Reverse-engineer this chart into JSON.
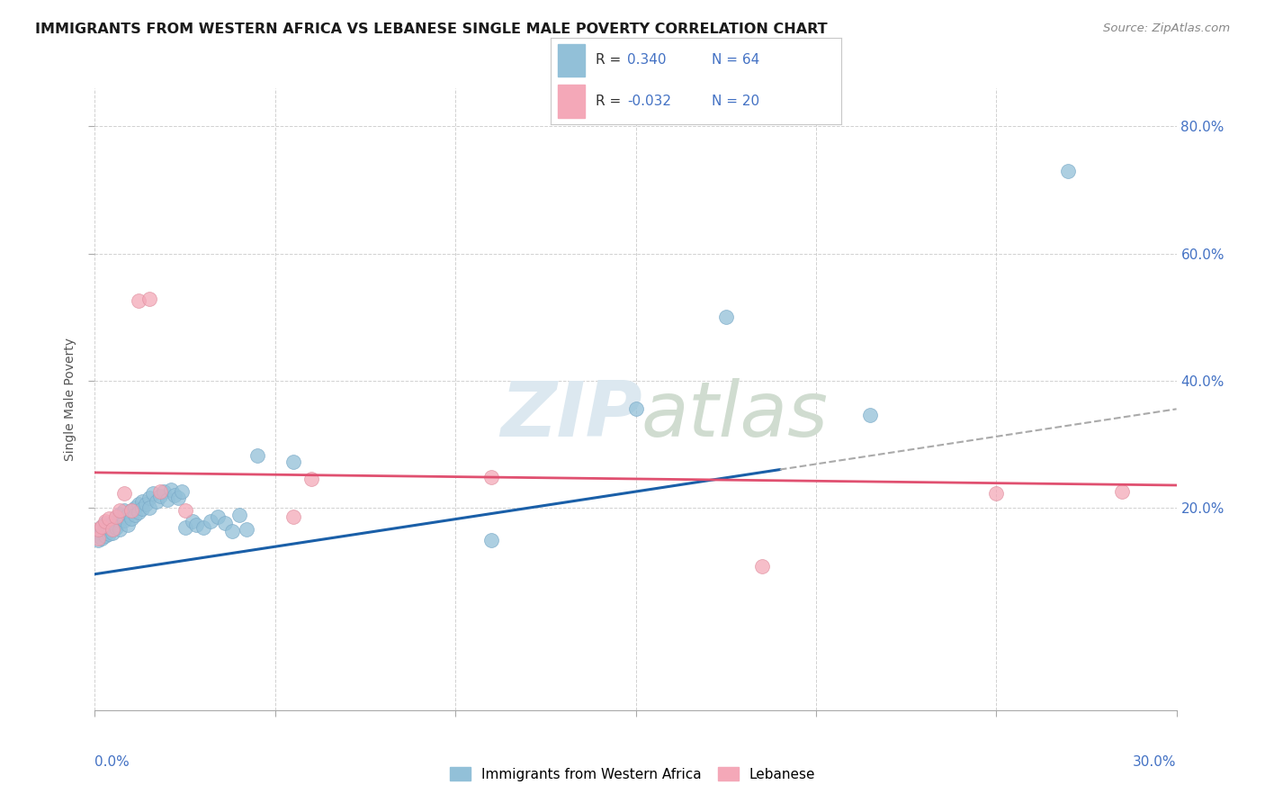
{
  "title": "IMMIGRANTS FROM WESTERN AFRICA VS LEBANESE SINGLE MALE POVERTY CORRELATION CHART",
  "source": "Source: ZipAtlas.com",
  "ylabel": "Single Male Poverty",
  "blue_color": "#92c0d8",
  "pink_color": "#f4a8b8",
  "blue_line_color": "#1a5fa8",
  "pink_line_color": "#e05070",
  "axis_label_color": "#4472c4",
  "title_color": "#1a1a1a",
  "source_color": "#888888",
  "grid_color": "#cccccc",
  "background_color": "#ffffff",
  "legend_text_color": "#4472c4",
  "legend_label_color": "#333333",
  "xlim": [
    0.0,
    0.3
  ],
  "ylim": [
    -0.12,
    0.86
  ],
  "xtick_left": "0.0%",
  "xtick_right": "30.0%",
  "ytick_right_vals": [
    0.2,
    0.4,
    0.6,
    0.8
  ],
  "ytick_right_labels": [
    "20.0%",
    "40.0%",
    "60.0%",
    "80.0%"
  ],
  "legend_label1": "Immigrants from Western Africa",
  "legend_label2": "Lebanese",
  "blue_scatter_x": [
    0.001,
    0.001,
    0.001,
    0.002,
    0.002,
    0.002,
    0.002,
    0.003,
    0.003,
    0.003,
    0.003,
    0.004,
    0.004,
    0.004,
    0.005,
    0.005,
    0.005,
    0.006,
    0.006,
    0.006,
    0.007,
    0.007,
    0.007,
    0.008,
    0.008,
    0.009,
    0.009,
    0.01,
    0.01,
    0.011,
    0.011,
    0.012,
    0.012,
    0.013,
    0.013,
    0.014,
    0.015,
    0.015,
    0.016,
    0.017,
    0.018,
    0.019,
    0.02,
    0.021,
    0.022,
    0.023,
    0.024,
    0.025,
    0.027,
    0.028,
    0.03,
    0.032,
    0.034,
    0.036,
    0.038,
    0.04,
    0.042,
    0.045,
    0.055,
    0.11,
    0.15,
    0.175,
    0.215,
    0.27
  ],
  "blue_scatter_y": [
    0.155,
    0.148,
    0.162,
    0.158,
    0.165,
    0.152,
    0.17,
    0.16,
    0.168,
    0.155,
    0.175,
    0.162,
    0.172,
    0.158,
    0.175,
    0.165,
    0.16,
    0.172,
    0.182,
    0.168,
    0.178,
    0.19,
    0.165,
    0.195,
    0.18,
    0.188,
    0.172,
    0.195,
    0.182,
    0.2,
    0.188,
    0.205,
    0.192,
    0.21,
    0.198,
    0.205,
    0.215,
    0.2,
    0.222,
    0.21,
    0.218,
    0.225,
    0.212,
    0.228,
    0.22,
    0.215,
    0.225,
    0.168,
    0.178,
    0.172,
    0.168,
    0.178,
    0.185,
    0.175,
    0.162,
    0.188,
    0.165,
    0.282,
    0.272,
    0.148,
    0.355,
    0.5,
    0.345,
    0.73
  ],
  "pink_scatter_x": [
    0.001,
    0.001,
    0.002,
    0.003,
    0.004,
    0.005,
    0.006,
    0.007,
    0.008,
    0.01,
    0.012,
    0.015,
    0.018,
    0.025,
    0.055,
    0.06,
    0.11,
    0.185,
    0.25,
    0.285
  ],
  "pink_scatter_y": [
    0.152,
    0.165,
    0.17,
    0.178,
    0.182,
    0.165,
    0.185,
    0.195,
    0.222,
    0.195,
    0.525,
    0.528,
    0.225,
    0.195,
    0.185,
    0.245,
    0.248,
    0.108,
    0.222,
    0.225
  ],
  "blue_line_x_start": 0.0,
  "blue_line_x_solid_end": 0.19,
  "blue_line_x_end": 0.3,
  "pink_line_x_start": 0.0,
  "pink_line_x_end": 0.3
}
